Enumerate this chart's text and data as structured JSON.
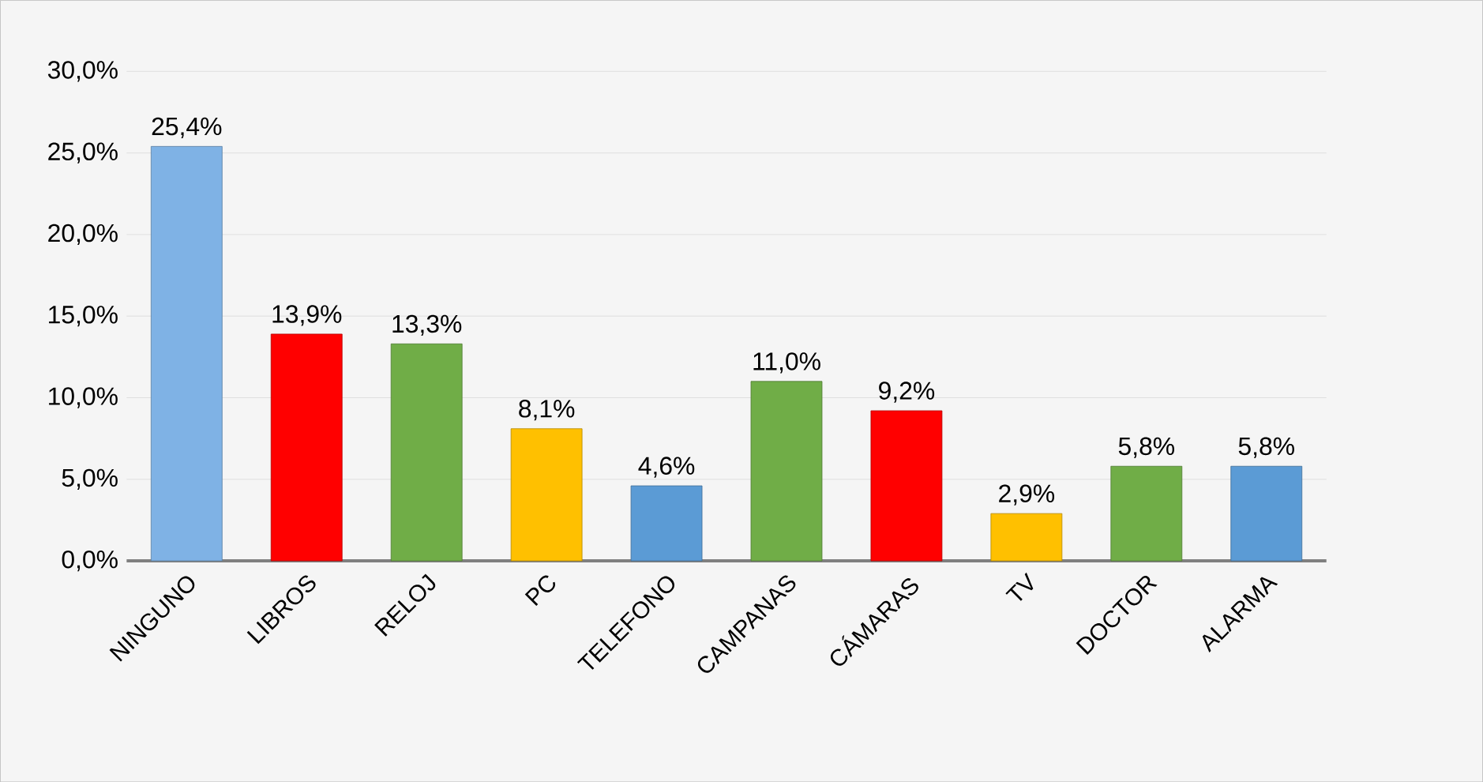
{
  "chart_data": {
    "type": "bar",
    "categories": [
      "NINGUNO",
      "LIBROS",
      "RELOJ",
      "PC",
      "TELEFONO",
      "CAMPANAS",
      "CÁMARAS",
      "TV",
      "DOCTOR",
      "ALARMA"
    ],
    "values": [
      25.4,
      13.9,
      13.3,
      8.1,
      4.6,
      11.0,
      9.2,
      2.9,
      5.8,
      5.8
    ],
    "colors": [
      "#7fb2e5",
      "#ff0000",
      "#70ad47",
      "#ffc000",
      "#5b9bd5",
      "#70ad47",
      "#ff0000",
      "#ffc000",
      "#70ad47",
      "#5b9bd5"
    ],
    "value_labels": [
      "25,4%",
      "13,9%",
      "13,3%",
      "8,1%",
      "4,6%",
      "11,0%",
      "9,2%",
      "2,9%",
      "5,8%",
      "5,8%"
    ],
    "ylim": [
      0,
      30
    ],
    "yticks": [
      {
        "value": 0,
        "label": "0,0%"
      },
      {
        "value": 5,
        "label": "5,0%"
      },
      {
        "value": 10,
        "label": "10,0%"
      },
      {
        "value": 15,
        "label": "15,0%"
      },
      {
        "value": 20,
        "label": "20,0%"
      },
      {
        "value": 25,
        "label": "25,0%"
      },
      {
        "value": 30,
        "label": "30,0%"
      }
    ],
    "grid": "y"
  }
}
